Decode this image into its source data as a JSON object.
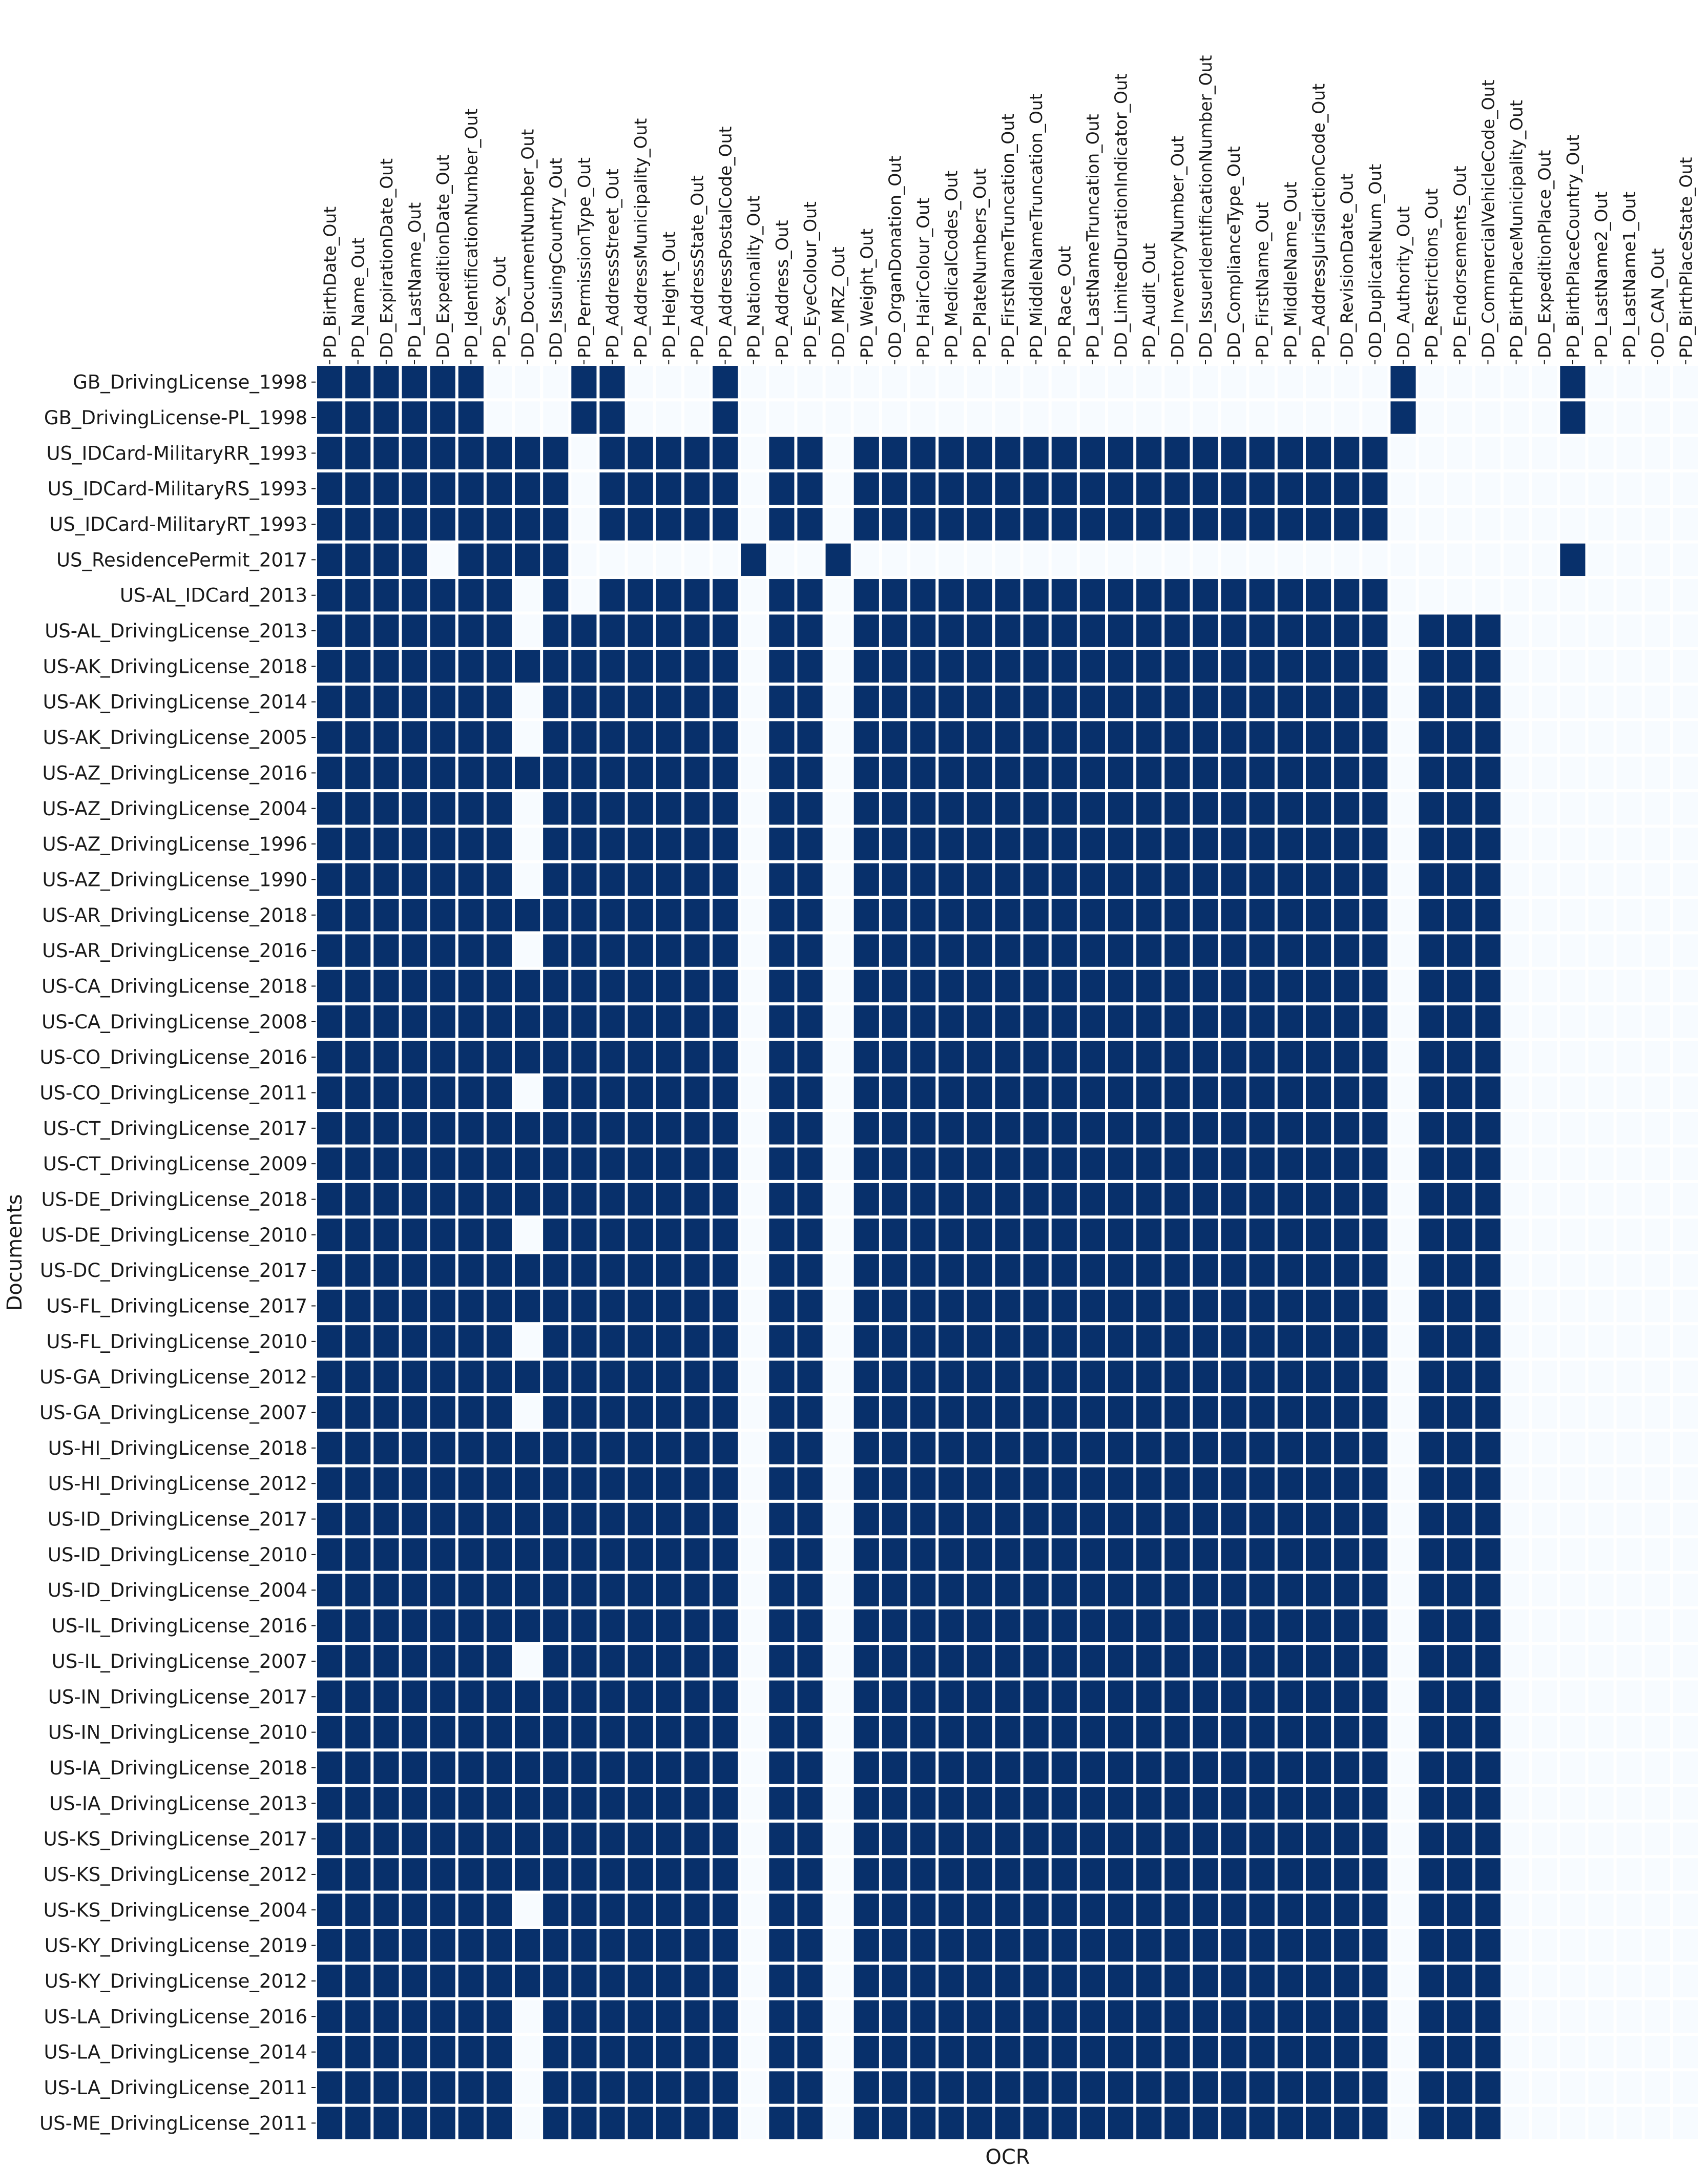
{
  "chart_data": {
    "type": "heatmap",
    "title": "",
    "xlabel": "OCR",
    "ylabel": "Documents",
    "colors": {
      "filled": "#08306b",
      "empty": "#f7fbff",
      "gap": "#ffffff"
    },
    "columns": [
      "PD_BirthDate_Out",
      "PD_Name_Out",
      "DD_ExpirationDate_Out",
      "PD_LastName_Out",
      "DD_ExpeditionDate_Out",
      "PD_IdentificationNumber_Out",
      "PD_Sex_Out",
      "DD_DocumentNumber_Out",
      "DD_IssuingCountry_Out",
      "PD_PermissionType_Out",
      "PD_AddressStreet_Out",
      "PD_AddressMunicipality_Out",
      "PD_Height_Out",
      "PD_AddressState_Out",
      "PD_AddressPostalCode_Out",
      "PD_Nationality_Out",
      "PD_Address_Out",
      "PD_EyeColour_Out",
      "DD_MRZ_Out",
      "PD_Weight_Out",
      "OD_OrganDonation_Out",
      "PD_HairColour_Out",
      "PD_MedicalCodes_Out",
      "PD_PlateNumbers_Out",
      "PD_FirstNameTruncation_Out",
      "PD_MiddleNameTruncation_Out",
      "PD_Race_Out",
      "PD_LastNameTruncation_Out",
      "DD_LimitedDurationIndicator_Out",
      "PD_Audit_Out",
      "DD_InventoryNumber_Out",
      "DD_IssuerIdentificationNumber_Out",
      "DD_ComplianceType_Out",
      "PD_FirstName_Out",
      "PD_MiddleName_Out",
      "PD_AddressJurisdictionCode_Out",
      "DD_RevisionDate_Out",
      "OD_DuplicateNum_Out",
      "DD_Authority_Out",
      "PD_Restrictions_Out",
      "PD_Endorsements_Out",
      "DD_CommercialVehicleCode_Out",
      "PD_BirthPlaceMunicipality_Out",
      "DD_ExpeditionPlace_Out",
      "PD_BirthPlaceCountry_Out",
      "PD_LastName2_Out",
      "PD_LastName1_Out",
      "OD_CAN_Out",
      "PD_BirthPlaceState_Out"
    ],
    "rows": [
      "GB_DrivingLicense_1998",
      "GB_DrivingLicense-PL_1998",
      "US_IDCard-MilitaryRR_1993",
      "US_IDCard-MilitaryRS_1993",
      "US_IDCard-MilitaryRT_1993",
      "US_ResidencePermit_2017",
      "US-AL_IDCard_2013",
      "US-AL_DrivingLicense_2013",
      "US-AK_DrivingLicense_2018",
      "US-AK_DrivingLicense_2014",
      "US-AK_DrivingLicense_2005",
      "US-AZ_DrivingLicense_2016",
      "US-AZ_DrivingLicense_2004",
      "US-AZ_DrivingLicense_1996",
      "US-AZ_DrivingLicense_1990",
      "US-AR_DrivingLicense_2018",
      "US-AR_DrivingLicense_2016",
      "US-CA_DrivingLicense_2018",
      "US-CA_DrivingLicense_2008",
      "US-CO_DrivingLicense_2016",
      "US-CO_DrivingLicense_2011",
      "US-CT_DrivingLicense_2017",
      "US-CT_DrivingLicense_2009",
      "US-DE_DrivingLicense_2018",
      "US-DE_DrivingLicense_2010",
      "US-DC_DrivingLicense_2017",
      "US-FL_DrivingLicense_2017",
      "US-FL_DrivingLicense_2010",
      "US-GA_DrivingLicense_2012",
      "US-GA_DrivingLicense_2007",
      "US-HI_DrivingLicense_2018",
      "US-HI_DrivingLicense_2012",
      "US-ID_DrivingLicense_2017",
      "US-ID_DrivingLicense_2010",
      "US-ID_DrivingLicense_2004",
      "US-IL_DrivingLicense_2016",
      "US-IL_DrivingLicense_2007",
      "US-IN_DrivingLicense_2017",
      "US-IN_DrivingLicense_2010",
      "US-IA_DrivingLicense_2018",
      "US-IA_DrivingLicense_2013",
      "US-KS_DrivingLicense_2017",
      "US-KS_DrivingLicense_2012",
      "US-KS_DrivingLicense_2004",
      "US-KY_DrivingLicense_2019",
      "US-KY_DrivingLicense_2012",
      "US-LA_DrivingLicense_2016",
      "US-LA_DrivingLicense_2014",
      "US-LA_DrivingLicense_2011",
      "US-ME_DrivingLicense_2011"
    ],
    "matrix": [
      "1111110001100010000000000000000000000010000010000",
      "1111110001100010000000000000000000000010000010000",
      "1111111110111110110111111111111111111100000000000",
      "1111111110111110110111111111111111111100000000000",
      "1111111110111110110111111111111111111100000000000",
      "1111011110000001001000000000000000000000000010000",
      "1111111010111110110111111111111111111100000000000",
      "1111111011111110110111111111111111111101110000000",
      "1111111111111110110111111111111111111101110000000",
      "1111111011111110110111111111111111111101110000000",
      "1111111011111110110111111111111111111101110000000",
      "1111111111111110110111111111111111111101110000000",
      "1111111011111110110111111111111111111101110000000",
      "1111111011111110110111111111111111111101110000000",
      "1111111011111110110111111111111111111101110000000",
      "1111111111111110110111111111111111111101110000000",
      "1111111011111110110111111111111111111101110000000",
      "1111111111111110110111111111111111111101110000000",
      "1111111111111110110111111111111111111101110000000",
      "1111111111111110110111111111111111111101110000000",
      "1111111011111110110111111111111111111101110000000",
      "1111111111111110110111111111111111111101110000000",
      "1111111111111110110111111111111111111101110000000",
      "1111111111111110110111111111111111111101110000000",
      "1111111011111110110111111111111111111101110000000",
      "1111111111111110110111111111111111111101110000000",
      "1111111111111110110111111111111111111101110000000",
      "1111111011111110110111111111111111111101110000000",
      "1111111111111110110111111111111111111101110000000",
      "1111111011111110110111111111111111111101110000000",
      "1111111111111110110111111111111111111101110000000",
      "1111111111111110110111111111111111111101110000000",
      "1111111111111110110111111111111111111101110000000",
      "1111111111111110110111111111111111111101110000000",
      "1111111111111110110111111111111111111101110000000",
      "1111111111111110110111111111111111111101110000000",
      "1111111011111110110111111111111111111101110000000",
      "1111111111111110110111111111111111111101110000000",
      "1111111111111110110111111111111111111101110000000",
      "1111111111111110110111111111111111111101110000000",
      "1111111111111110110111111111111111111101110000000",
      "1111111111111110110111111111111111111101110000000",
      "1111111111111110110111111111111111111101110000000",
      "1111111011111110110111111111111111111101110000000",
      "1111111111111110110111111111111111111101110000000",
      "1111111111111110110111111111111111111101110000000",
      "1111111011111110110111111111111111111101110000000",
      "1111111011111110110111111111111111111101110000000",
      "1111111011111110110111111111111111111101110000000",
      "1111111011111110110111111111111111111101110000000"
    ]
  }
}
